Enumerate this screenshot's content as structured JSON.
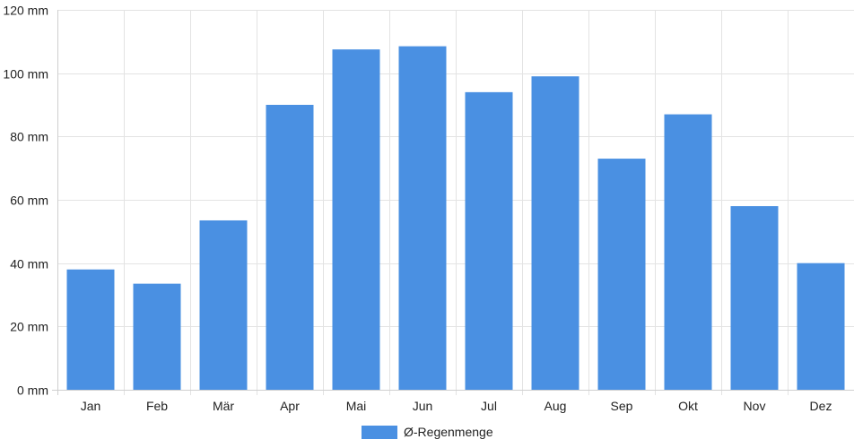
{
  "chart_data": {
    "type": "bar",
    "categories": [
      "Jan",
      "Feb",
      "Mär",
      "Apr",
      "Mai",
      "Jun",
      "Jul",
      "Aug",
      "Sep",
      "Okt",
      "Nov",
      "Dez"
    ],
    "series": [
      {
        "name": "Ø-Regenmenge",
        "values": [
          38,
          33.5,
          53.5,
          90,
          107.5,
          108.5,
          94,
          99,
          73,
          87,
          58,
          40
        ],
        "color": "#4a90e2"
      }
    ],
    "yunit": "mm",
    "ylim": [
      0,
      120
    ],
    "yticks": [
      0,
      20,
      40,
      60,
      80,
      100,
      120
    ],
    "ytick_labels": [
      "0 mm",
      "20 mm",
      "40 mm",
      "60 mm",
      "80 mm",
      "100 mm",
      "120 mm"
    ],
    "grid": true,
    "legend_position": "bottom-center"
  }
}
